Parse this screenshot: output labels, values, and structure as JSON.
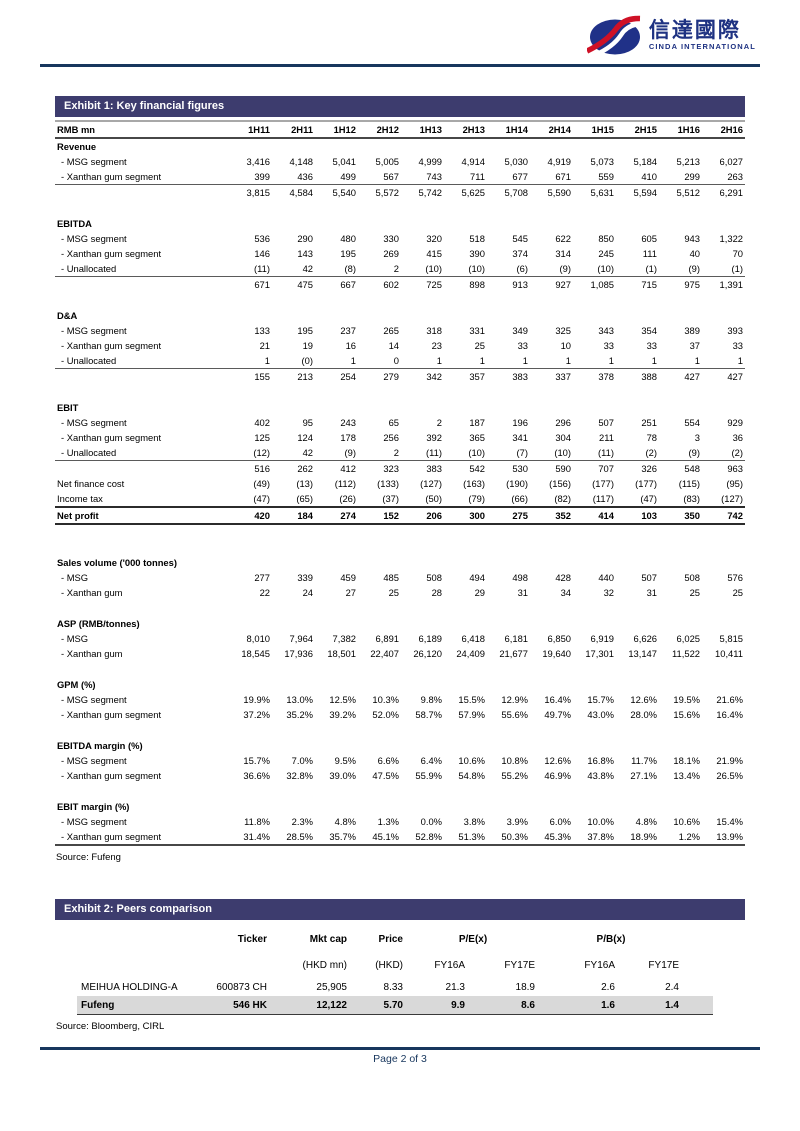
{
  "logo": {
    "cn": "信達國際",
    "en": "CINDA INTERNATIONAL"
  },
  "footer": {
    "page": "Page 2 of 3"
  },
  "exhibit1": {
    "title": "Exhibit 1: Key financial figures",
    "unit_label": "RMB mn",
    "periods": [
      "1H11",
      "2H11",
      "1H12",
      "2H12",
      "1H13",
      "2H13",
      "1H14",
      "2H14",
      "1H15",
      "2H15",
      "1H16",
      "2H16"
    ],
    "source": "Source: Fufeng",
    "rows": [
      {
        "type": "section",
        "label": "Revenue"
      },
      {
        "type": "item",
        "label": "- MSG segment",
        "values": [
          "3,416",
          "4,148",
          "5,041",
          "5,005",
          "4,999",
          "4,914",
          "5,030",
          "4,919",
          "5,073",
          "5,184",
          "5,213",
          "6,027"
        ]
      },
      {
        "type": "item",
        "label": "- Xanthan gum segment",
        "values": [
          "399",
          "436",
          "499",
          "567",
          "743",
          "711",
          "677",
          "671",
          "559",
          "410",
          "299",
          "263"
        ]
      },
      {
        "type": "total",
        "label": "",
        "values": [
          "3,815",
          "4,584",
          "5,540",
          "5,572",
          "5,742",
          "5,625",
          "5,708",
          "5,590",
          "5,631",
          "5,594",
          "5,512",
          "6,291"
        ]
      },
      {
        "type": "spacer",
        "h": 16
      },
      {
        "type": "section",
        "label": "EBITDA"
      },
      {
        "type": "item",
        "label": "- MSG segment",
        "values": [
          "536",
          "290",
          "480",
          "330",
          "320",
          "518",
          "545",
          "622",
          "850",
          "605",
          "943",
          "1,322"
        ]
      },
      {
        "type": "item",
        "label": "- Xanthan gum segment",
        "values": [
          "146",
          "143",
          "195",
          "269",
          "415",
          "390",
          "374",
          "314",
          "245",
          "111",
          "40",
          "70"
        ]
      },
      {
        "type": "item",
        "label": "- Unallocated",
        "values": [
          "(11)",
          "42",
          "(8)",
          "2",
          "(10)",
          "(10)",
          "(6)",
          "(9)",
          "(10)",
          "(1)",
          "(9)",
          "(1)"
        ]
      },
      {
        "type": "total",
        "label": "",
        "values": [
          "671",
          "475",
          "667",
          "602",
          "725",
          "898",
          "913",
          "927",
          "1,085",
          "715",
          "975",
          "1,391"
        ]
      },
      {
        "type": "spacer",
        "h": 16
      },
      {
        "type": "section",
        "label": "D&A"
      },
      {
        "type": "item",
        "label": "- MSG segment",
        "values": [
          "133",
          "195",
          "237",
          "265",
          "318",
          "331",
          "349",
          "325",
          "343",
          "354",
          "389",
          "393"
        ]
      },
      {
        "type": "item",
        "label": "- Xanthan gum segment",
        "values": [
          "21",
          "19",
          "16",
          "14",
          "23",
          "25",
          "33",
          "10",
          "33",
          "33",
          "37",
          "33"
        ]
      },
      {
        "type": "item",
        "label": "- Unallocated",
        "values": [
          "1",
          "(0)",
          "1",
          "0",
          "1",
          "1",
          "1",
          "1",
          "1",
          "1",
          "1",
          "1"
        ]
      },
      {
        "type": "total",
        "label": "",
        "values": [
          "155",
          "213",
          "254",
          "279",
          "342",
          "357",
          "383",
          "337",
          "378",
          "388",
          "427",
          "427"
        ]
      },
      {
        "type": "spacer",
        "h": 16
      },
      {
        "type": "section",
        "label": "EBIT"
      },
      {
        "type": "item",
        "label": "- MSG segment",
        "values": [
          "402",
          "95",
          "243",
          "65",
          "2",
          "187",
          "196",
          "296",
          "507",
          "251",
          "554",
          "929"
        ]
      },
      {
        "type": "item",
        "label": "- Xanthan gum segment",
        "values": [
          "125",
          "124",
          "178",
          "256",
          "392",
          "365",
          "341",
          "304",
          "211",
          "78",
          "3",
          "36"
        ]
      },
      {
        "type": "item",
        "label": "- Unallocated",
        "values": [
          "(12)",
          "42",
          "(9)",
          "2",
          "(11)",
          "(10)",
          "(7)",
          "(10)",
          "(11)",
          "(2)",
          "(9)",
          "(2)"
        ]
      },
      {
        "type": "total",
        "label": "",
        "values": [
          "516",
          "262",
          "412",
          "323",
          "383",
          "542",
          "530",
          "590",
          "707",
          "326",
          "548",
          "963"
        ]
      },
      {
        "type": "plain",
        "label": "Net finance cost",
        "values": [
          "(49)",
          "(13)",
          "(112)",
          "(133)",
          "(127)",
          "(163)",
          "(190)",
          "(156)",
          "(177)",
          "(177)",
          "(115)",
          "(95)"
        ]
      },
      {
        "type": "plain",
        "label": "Income tax",
        "values": [
          "(47)",
          "(65)",
          "(26)",
          "(37)",
          "(50)",
          "(79)",
          "(66)",
          "(82)",
          "(117)",
          "(47)",
          "(83)",
          "(127)"
        ]
      },
      {
        "type": "net",
        "label": "Net profit",
        "values": [
          "420",
          "184",
          "274",
          "152",
          "206",
          "300",
          "275",
          "352",
          "414",
          "103",
          "350",
          "742"
        ]
      },
      {
        "type": "spacer",
        "h": 30
      },
      {
        "type": "section",
        "label": "Sales volume ('000 tonnes)"
      },
      {
        "type": "item",
        "label": "- MSG",
        "values": [
          "277",
          "339",
          "459",
          "485",
          "508",
          "494",
          "498",
          "428",
          "440",
          "507",
          "508",
          "576"
        ]
      },
      {
        "type": "item",
        "label": "- Xanthan gum",
        "values": [
          "22",
          "24",
          "27",
          "25",
          "28",
          "29",
          "31",
          "34",
          "32",
          "31",
          "25",
          "25"
        ]
      },
      {
        "type": "spacer",
        "h": 16
      },
      {
        "type": "section",
        "label": "ASP (RMB/tonnes)"
      },
      {
        "type": "item",
        "label": "- MSG",
        "values": [
          "8,010",
          "7,964",
          "7,382",
          "6,891",
          "6,189",
          "6,418",
          "6,181",
          "6,850",
          "6,919",
          "6,626",
          "6,025",
          "5,815"
        ]
      },
      {
        "type": "item",
        "label": "- Xanthan gum",
        "values": [
          "18,545",
          "17,936",
          "18,501",
          "22,407",
          "26,120",
          "24,409",
          "21,677",
          "19,640",
          "17,301",
          "13,147",
          "11,522",
          "10,411"
        ]
      },
      {
        "type": "spacer",
        "h": 16
      },
      {
        "type": "section",
        "label": "GPM (%)"
      },
      {
        "type": "item",
        "label": "- MSG segment",
        "values": [
          "19.9%",
          "13.0%",
          "12.5%",
          "10.3%",
          "9.8%",
          "15.5%",
          "12.9%",
          "16.4%",
          "15.7%",
          "12.6%",
          "19.5%",
          "21.6%"
        ]
      },
      {
        "type": "item",
        "label": "- Xanthan gum segment",
        "values": [
          "37.2%",
          "35.2%",
          "39.2%",
          "52.0%",
          "58.7%",
          "57.9%",
          "55.6%",
          "49.7%",
          "43.0%",
          "28.0%",
          "15.6%",
          "16.4%"
        ]
      },
      {
        "type": "spacer",
        "h": 16
      },
      {
        "type": "section",
        "label": "EBITDA margin (%)"
      },
      {
        "type": "item",
        "label": "- MSG segment",
        "values": [
          "15.7%",
          "7.0%",
          "9.5%",
          "6.6%",
          "6.4%",
          "10.6%",
          "10.8%",
          "12.6%",
          "16.8%",
          "11.7%",
          "18.1%",
          "21.9%"
        ]
      },
      {
        "type": "item",
        "label": "- Xanthan gum segment",
        "values": [
          "36.6%",
          "32.8%",
          "39.0%",
          "47.5%",
          "55.9%",
          "54.8%",
          "55.2%",
          "46.9%",
          "43.8%",
          "27.1%",
          "13.4%",
          "26.5%"
        ]
      },
      {
        "type": "spacer",
        "h": 16
      },
      {
        "type": "section",
        "label": "EBIT margin (%)"
      },
      {
        "type": "item",
        "label": "- MSG segment",
        "values": [
          "11.8%",
          "2.3%",
          "4.8%",
          "1.3%",
          "0.0%",
          "3.8%",
          "3.9%",
          "6.0%",
          "10.0%",
          "4.8%",
          "10.6%",
          "15.4%"
        ]
      },
      {
        "type": "item",
        "label": "- Xanthan gum segment",
        "last": true,
        "values": [
          "31.4%",
          "28.5%",
          "35.7%",
          "45.1%",
          "52.8%",
          "51.3%",
          "50.3%",
          "45.3%",
          "37.8%",
          "18.9%",
          "1.2%",
          "13.9%"
        ]
      }
    ]
  },
  "exhibit2": {
    "title": "Exhibit 2: Peers comparison",
    "col_headers": [
      "Ticker",
      "Mkt cap",
      "Price",
      "P/E(x)",
      "P/B(x)"
    ],
    "sub_headers": [
      "(HKD mn)",
      "(HKD)",
      "FY16A",
      "FY17E",
      "FY16A",
      "FY17E"
    ],
    "source": "Source: Bloomberg, CIRL",
    "rows": [
      {
        "name": "MEIHUA HOLDING-A",
        "ticker": "600873 CH",
        "mktcap": "25,905",
        "price": "8.33",
        "pe_fy16a": "21.3",
        "pe_fy17e": "18.9",
        "pb_fy16a": "2.6",
        "pb_fy17e": "2.4",
        "highlight": false
      },
      {
        "name": "Fufeng",
        "ticker": "546 HK",
        "mktcap": "12,122",
        "price": "5.70",
        "pe_fy16a": "9.9",
        "pe_fy17e": "8.6",
        "pb_fy16a": "1.6",
        "pb_fy17e": "1.4",
        "highlight": true
      }
    ]
  },
  "colors": {
    "exhibit_bar": "#3d3c6e",
    "rule_navy": "#17365d",
    "highlight_row": "#d9d9d9",
    "logo_blue": "#1e3282",
    "logo_red": "#cf1126"
  }
}
